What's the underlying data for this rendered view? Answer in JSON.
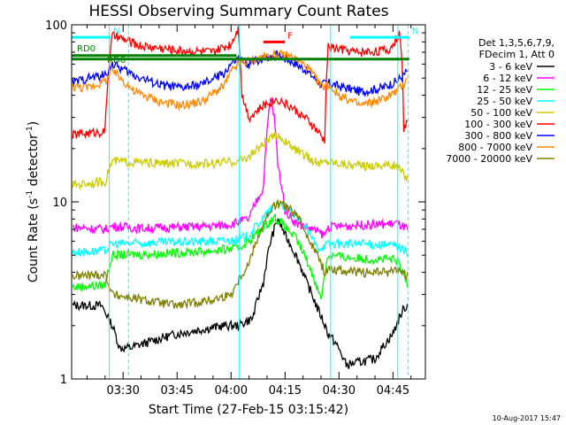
{
  "chart_data": {
    "type": "line",
    "title": "HESSI Observing Summary Count Rates",
    "xlabel": "Start Time (27-Feb-15 03:15:42)",
    "ylabel": "Count Rate (s",
    "ylabel_sup": "-1",
    "ylabel_rest": " detector",
    "ylabel_sup2": "-1",
    "ylabel_end": ")",
    "y_scale": "log",
    "ylim": [
      1,
      100
    ],
    "xlim": [
      "03:15:42",
      "04:54:00"
    ],
    "x_ticks": [
      "03:30",
      "03:45",
      "04:00",
      "04:15",
      "04:30",
      "04:45"
    ],
    "y_ticks": [
      "1",
      "10",
      "100"
    ],
    "legend_header": [
      "Det 1,3,5,6,7,9,",
      "FDecim 1, Att 0"
    ],
    "legend_position": "right",
    "footer_date": "10-Aug-2017 15:47",
    "series": [
      {
        "name": "3 - 6 keV",
        "color": "#000000",
        "x": [
          "03:16",
          "03:24",
          "03:27",
          "03:29",
          "03:32",
          "03:45",
          "03:58",
          "04:02",
          "04:06",
          "04:09",
          "04:11",
          "04:13",
          "04:15",
          "04:18",
          "04:21",
          "04:24",
          "04:27",
          "04:29",
          "04:32",
          "04:40",
          "04:45",
          "04:48",
          "04:49"
        ],
        "y": [
          2.6,
          2.6,
          2.0,
          1.5,
          1.5,
          1.8,
          2.0,
          2.0,
          2.2,
          3.5,
          6.0,
          8.0,
          6.5,
          5.0,
          3.5,
          2.5,
          1.8,
          1.6,
          1.2,
          1.3,
          1.8,
          2.5,
          2.6
        ]
      },
      {
        "name": "6 - 12 keV",
        "color": "#ff00ff",
        "x": [
          "03:16",
          "03:25",
          "03:27",
          "03:35",
          "03:45",
          "03:55",
          "04:00",
          "04:05",
          "04:09",
          "04:11",
          "04:12",
          "04:13",
          "04:15",
          "04:18",
          "04:22",
          "04:26",
          "04:27",
          "04:35",
          "04:44",
          "04:46",
          "04:49"
        ],
        "y": [
          7.2,
          7.0,
          7.3,
          7.1,
          7.2,
          7.3,
          7.5,
          8.0,
          12.0,
          38.0,
          30.0,
          16.0,
          9.0,
          7.6,
          7.1,
          6.5,
          7.2,
          7.4,
          7.5,
          7.6,
          7.0
        ]
      },
      {
        "name": "12 - 25 keV",
        "color": "#00ff00",
        "x": [
          "03:16",
          "03:25",
          "03:27",
          "03:40",
          "03:55",
          "04:02",
          "04:05",
          "04:10",
          "04:12",
          "04:14",
          "04:18",
          "04:22",
          "04:25",
          "04:27",
          "04:35",
          "04:46",
          "04:49"
        ],
        "y": [
          3.3,
          3.4,
          5.0,
          5.1,
          5.3,
          5.5,
          6.0,
          7.5,
          8.2,
          7.6,
          6.2,
          4.2,
          2.8,
          5.0,
          4.8,
          4.7,
          3.4
        ]
      },
      {
        "name": "25 - 50 keV",
        "color": "#00ffff",
        "x": [
          "03:16",
          "03:25",
          "03:27",
          "03:40",
          "03:55",
          "04:02",
          "04:05",
          "04:10",
          "04:13",
          "04:16",
          "04:20",
          "04:24",
          "04:27",
          "04:35",
          "04:44",
          "04:46",
          "04:49"
        ],
        "y": [
          5.2,
          5.3,
          5.8,
          5.9,
          6.0,
          6.1,
          6.5,
          8.5,
          10.0,
          9.0,
          7.5,
          5.5,
          5.8,
          5.8,
          5.7,
          5.7,
          5.2
        ]
      },
      {
        "name": "50 - 100 keV",
        "color": "#cccc00",
        "x": [
          "03:16",
          "03:25",
          "03:27",
          "03:40",
          "03:55",
          "04:02",
          "04:05",
          "04:10",
          "04:13",
          "04:16",
          "04:20",
          "04:24",
          "04:27",
          "04:35",
          "04:44",
          "04:46",
          "04:49"
        ],
        "y": [
          12.5,
          13.0,
          17.0,
          16.5,
          16.5,
          17.0,
          18.0,
          22.0,
          24.0,
          21.0,
          18.5,
          16.5,
          17.0,
          16.0,
          16.2,
          16.0,
          13.5
        ]
      },
      {
        "name": "100 - 300 keV",
        "color": "#ff0000",
        "x": [
          "03:16",
          "03:25",
          "03:27",
          "03:35",
          "03:45",
          "03:55",
          "04:00",
          "04:02",
          "04:03",
          "04:05",
          "04:10",
          "04:13",
          "04:17",
          "04:22",
          "04:26",
          "04:27",
          "04:35",
          "04:44",
          "04:47",
          "04:48",
          "04:49"
        ],
        "y": [
          24.0,
          25.0,
          87.0,
          76.0,
          72.0,
          70.0,
          78.0,
          96.0,
          40.0,
          30.0,
          36.0,
          38.0,
          34.0,
          28.0,
          22.0,
          75.0,
          70.0,
          72.0,
          90.0,
          26.0,
          28.0
        ]
      },
      {
        "name": "300 - 800 keV",
        "color": "#0000ff",
        "x": [
          "03:16",
          "03:20",
          "03:25",
          "03:27",
          "03:33",
          "03:40",
          "03:46",
          "03:52",
          "03:58",
          "04:00",
          "04:02",
          "04:05",
          "04:09",
          "04:13",
          "04:17",
          "04:21",
          "04:25",
          "04:27",
          "04:30",
          "04:36",
          "04:42",
          "04:46",
          "04:48",
          "04:49"
        ],
        "y": [
          47.0,
          50.0,
          52.0,
          60.0,
          52.0,
          46.0,
          44.0,
          46.0,
          53.0,
          60.0,
          64.0,
          60.0,
          65.0,
          68.0,
          62.0,
          55.0,
          46.0,
          47.0,
          45.0,
          42.0,
          44.0,
          48.0,
          52.0,
          55.0
        ]
      },
      {
        "name": "800 - 7000 keV",
        "color": "#ff8800",
        "x": [
          "03:16",
          "03:20",
          "03:25",
          "03:27",
          "03:33",
          "03:40",
          "03:46",
          "03:52",
          "03:58",
          "04:00",
          "04:02",
          "04:05",
          "04:09",
          "04:13",
          "04:17",
          "04:21",
          "04:25",
          "04:27",
          "04:30",
          "04:36",
          "04:42",
          "04:46",
          "04:48",
          "04:49"
        ],
        "y": [
          45.0,
          44.0,
          48.0,
          55.0,
          42.0,
          37.0,
          35.0,
          37.0,
          45.0,
          54.0,
          60.0,
          62.0,
          66.0,
          68.0,
          66.0,
          58.0,
          45.0,
          46.0,
          40.0,
          35.0,
          38.0,
          42.0,
          46.0,
          52.0
        ]
      },
      {
        "name": "7000 - 20000 keV",
        "color": "#808000",
        "x": [
          "03:16",
          "03:25",
          "03:27",
          "03:35",
          "03:45",
          "03:55",
          "04:00",
          "04:05",
          "04:09",
          "04:12",
          "04:14",
          "04:18",
          "04:22",
          "04:26",
          "04:27",
          "04:35",
          "04:44",
          "04:46",
          "04:49"
        ],
        "y": [
          3.8,
          3.9,
          3.0,
          2.8,
          2.6,
          2.8,
          3.0,
          4.5,
          7.5,
          9.5,
          9.8,
          8.5,
          6.0,
          4.0,
          4.2,
          4.0,
          4.0,
          4.2,
          3.8
        ]
      }
    ],
    "markers": [
      {
        "label": "N",
        "color": "#00ffff",
        "x": [
          "03:15:42",
          "03:26:30"
        ],
        "y": 85
      },
      {
        "label": "N",
        "color": "#00ffff",
        "x": [
          "04:33:00",
          "04:49:30"
        ],
        "y": 85
      },
      {
        "label": "F",
        "color": "#ff0000",
        "x": [
          "04:09:00",
          "04:15:00"
        ],
        "y": 80
      },
      {
        "label": "RD0",
        "color": "#008000",
        "x": [
          "03:15:42",
          "04:01:30"
        ],
        "y": 67
      },
      {
        "label": "RD6",
        "color": "#008000",
        "x": [
          "03:15:42",
          "04:49:30"
        ],
        "y": 64
      }
    ],
    "vlines_solid": [
      "03:26:10",
      "04:02:20",
      "04:27:40",
      "04:46:20"
    ],
    "vlines_dashed": [
      "03:31:30",
      "04:49:10"
    ]
  }
}
